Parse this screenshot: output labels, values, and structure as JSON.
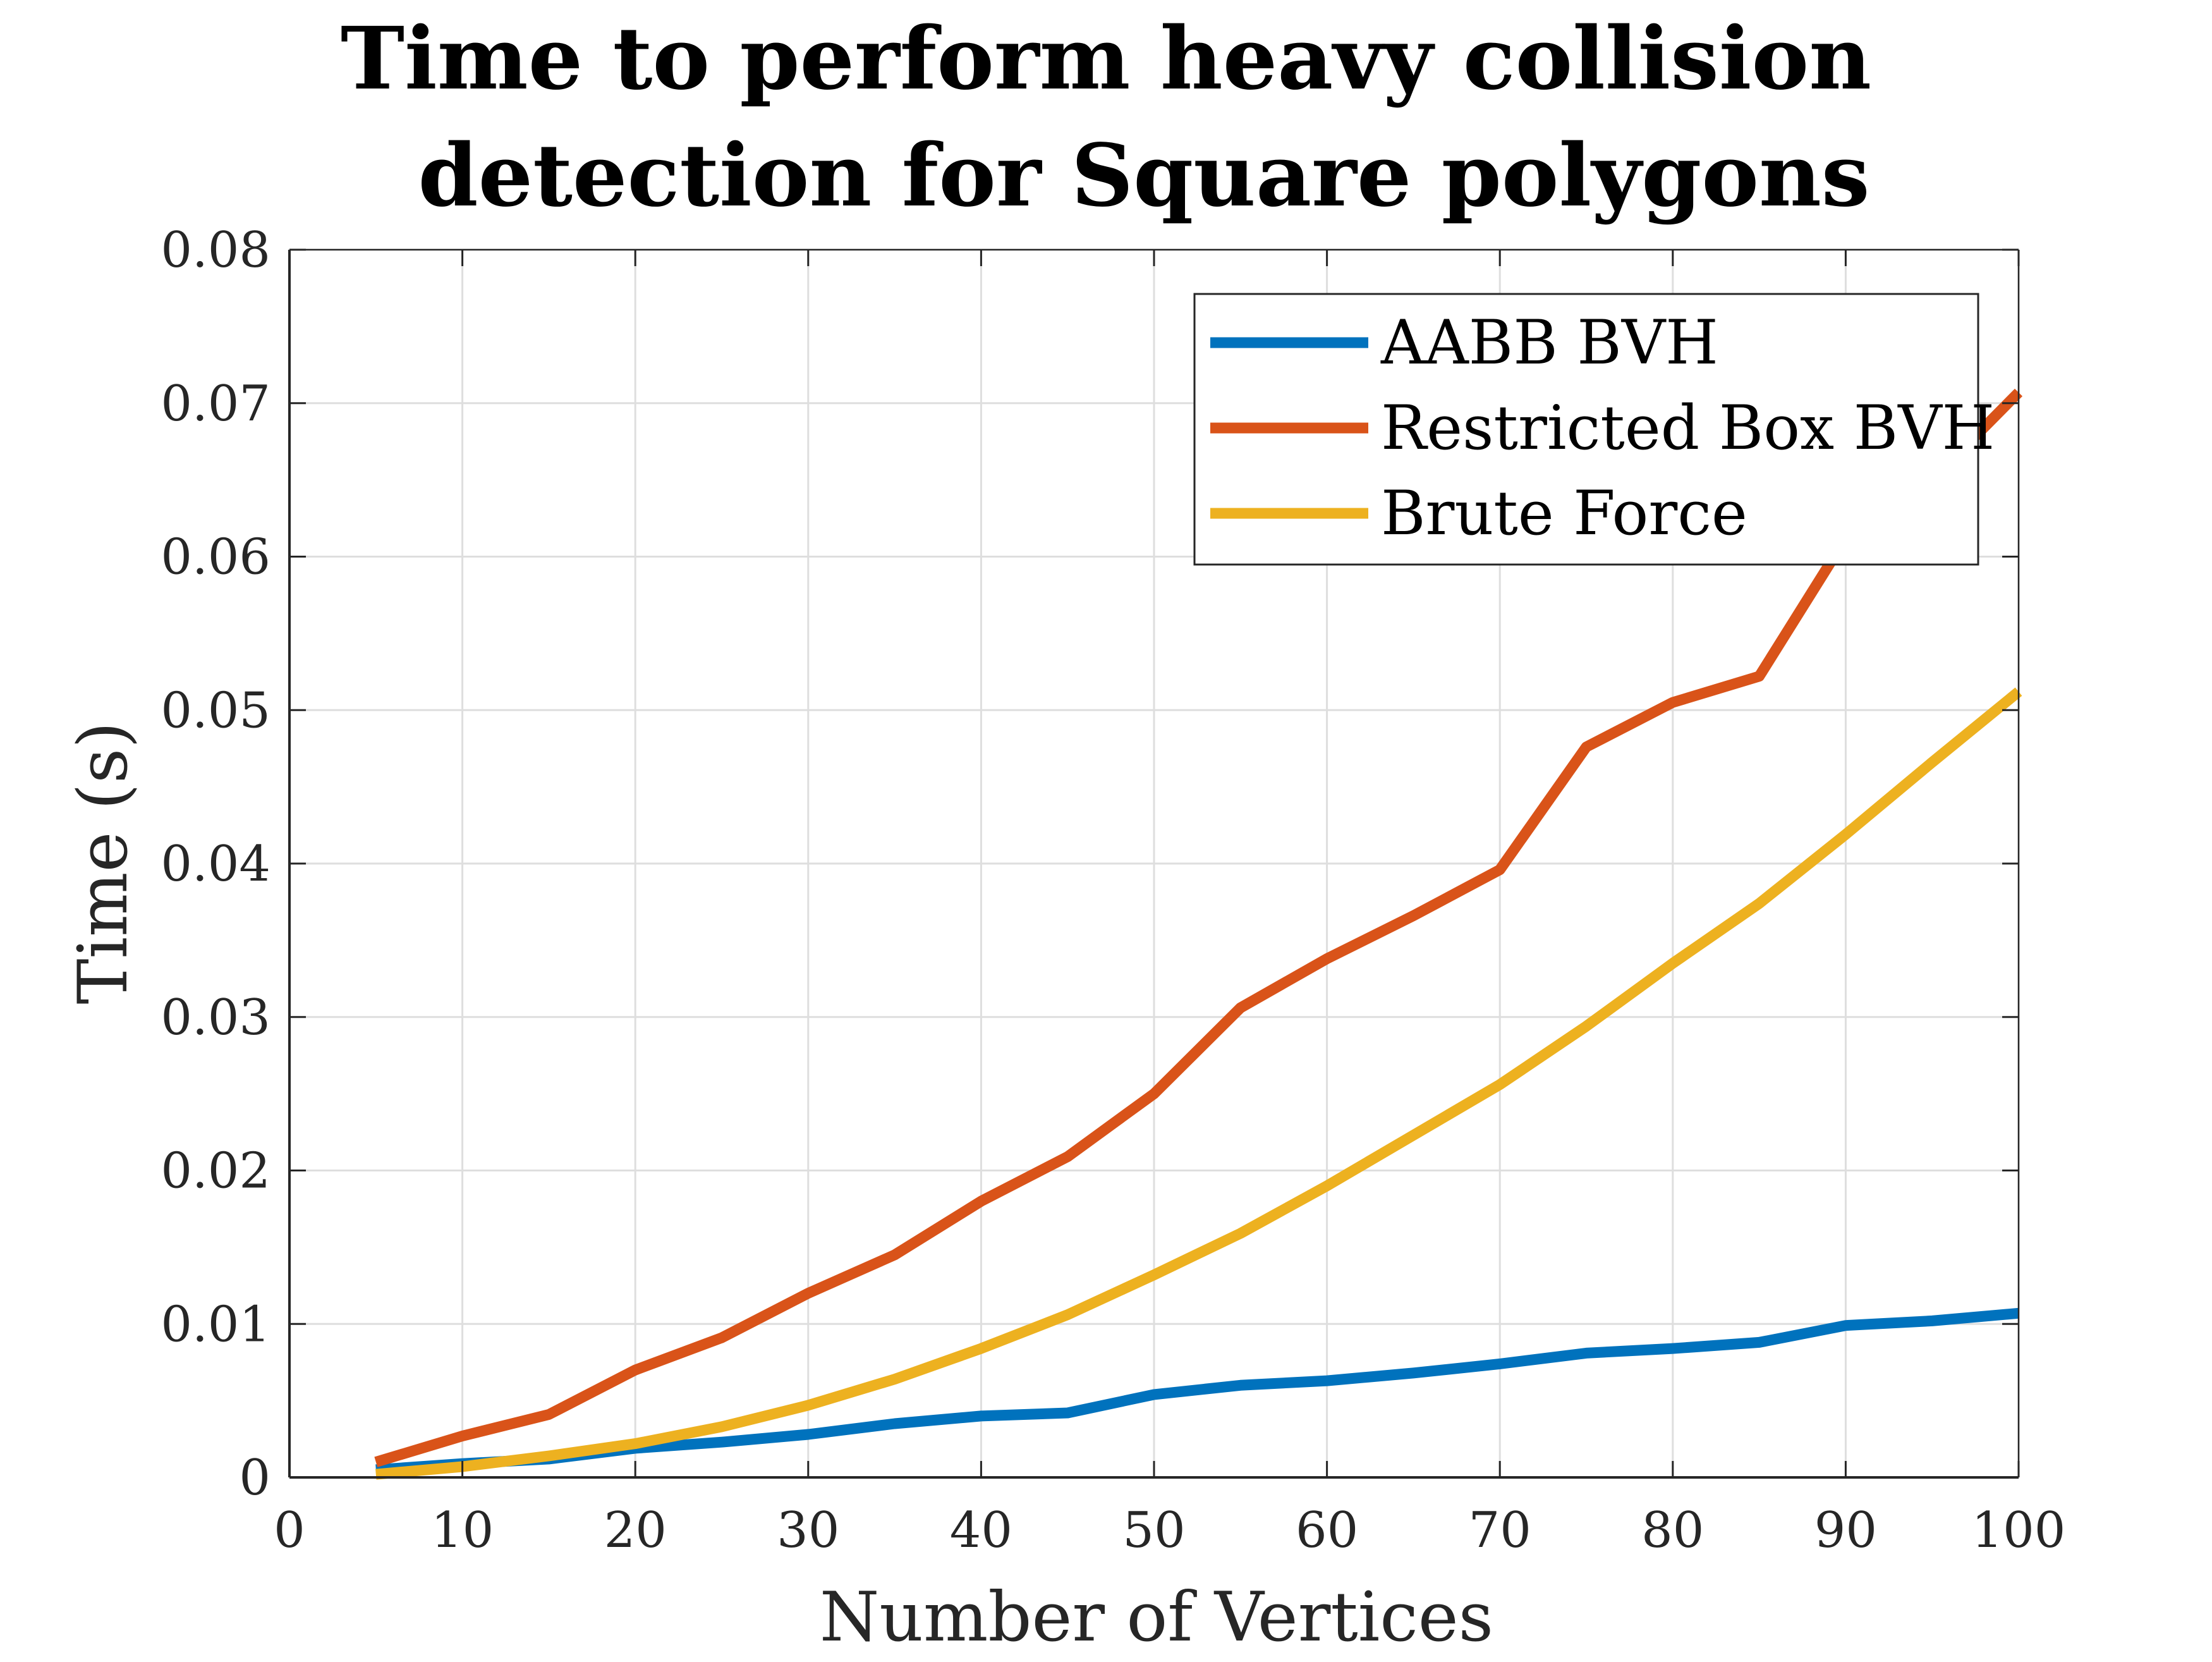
{
  "chart_data": {
    "type": "line",
    "title": [
      "Time to perform heavy collision",
      "detection for Square polygons"
    ],
    "xlabel": "Number of Vertices",
    "ylabel": "Time (s)",
    "xlim": [
      0,
      100
    ],
    "ylim": [
      0,
      0.08
    ],
    "xticks": [
      0,
      10,
      20,
      30,
      40,
      50,
      60,
      70,
      80,
      90,
      100
    ],
    "xtick_labels": [
      "0",
      "10",
      "20",
      "30",
      "40",
      "50",
      "60",
      "70",
      "80",
      "90",
      "100"
    ],
    "yticks": [
      0,
      0.01,
      0.02,
      0.03,
      0.04,
      0.05,
      0.06,
      0.07,
      0.08
    ],
    "ytick_labels": [
      "0",
      "0.01",
      "0.02",
      "0.03",
      "0.04",
      "0.05",
      "0.06",
      "0.07",
      "0.08"
    ],
    "grid": true,
    "legend_position": "top-right",
    "x": [
      5,
      10,
      15,
      20,
      25,
      30,
      35,
      40,
      45,
      50,
      55,
      60,
      65,
      70,
      75,
      80,
      85,
      90,
      95,
      100
    ],
    "series": [
      {
        "name": "AABB BVH",
        "color": "#0072BD",
        "values": [
          0.0005,
          0.0009,
          0.0012,
          0.0019,
          0.0023,
          0.0028,
          0.0035,
          0.004,
          0.0042,
          0.0054,
          0.006,
          0.0063,
          0.0068,
          0.0074,
          0.0081,
          0.0084,
          0.0088,
          0.0099,
          0.0102,
          0.0107
        ]
      },
      {
        "name": "Restricted Box BVH",
        "color": "#D95319",
        "values": [
          0.001,
          0.0027,
          0.0041,
          0.007,
          0.0091,
          0.012,
          0.0145,
          0.018,
          0.0209,
          0.025,
          0.0306,
          0.0338,
          0.0366,
          0.0396,
          0.0476,
          0.0505,
          0.0522,
          0.0612,
          0.065,
          0.0707
        ]
      },
      {
        "name": "Brute Force",
        "color": "#EDB120",
        "values": [
          0.0002,
          0.0007,
          0.0014,
          0.0022,
          0.0033,
          0.0047,
          0.0064,
          0.0084,
          0.0106,
          0.0132,
          0.0159,
          0.019,
          0.0223,
          0.0256,
          0.0294,
          0.0335,
          0.0374,
          0.0419,
          0.0466,
          0.0512
        ]
      }
    ]
  }
}
